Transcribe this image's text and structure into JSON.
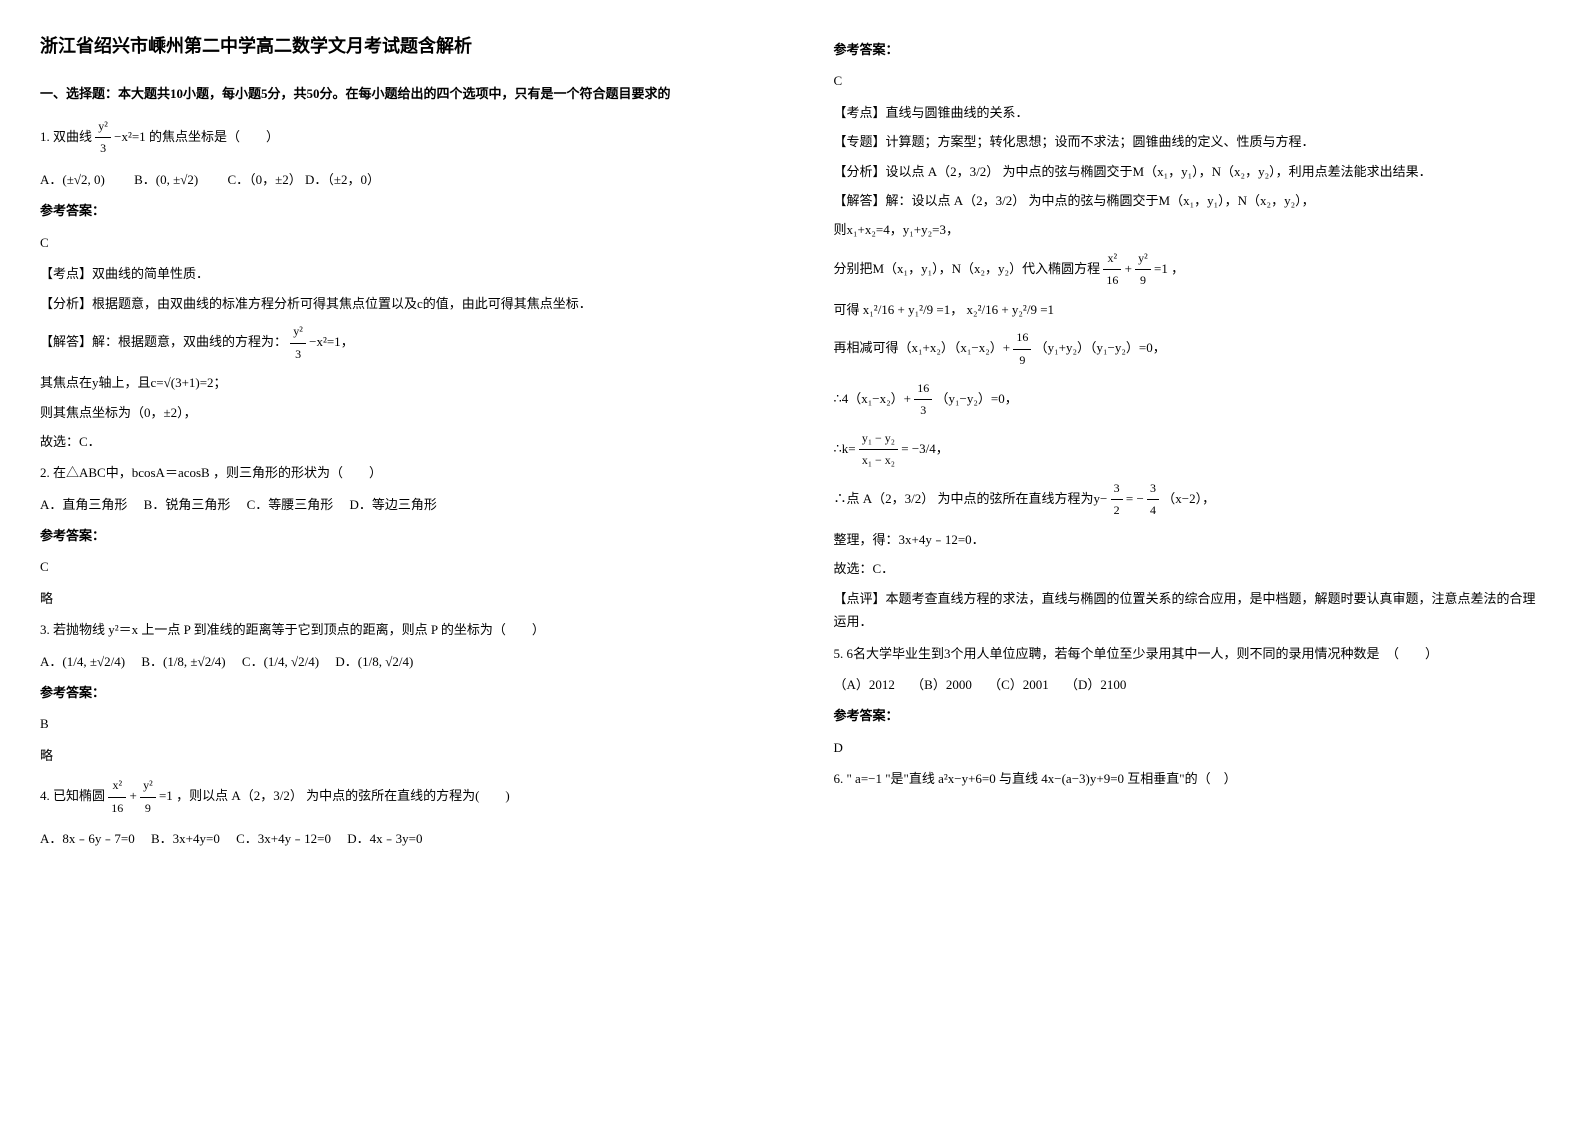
{
  "title": "浙江省绍兴市嵊州第二中学高二数学文月考试题含解析",
  "section1_heading": "一、选择题：本大题共10小题，每小题5分，共50分。在每小题给出的四个选项中，只有是一个符合题目要求的",
  "q1": {
    "stem_prefix": "1. 双曲线",
    "frac_num": "y²",
    "frac_den": "3",
    "frac_suffix": "−x²=1",
    "stem_suffix": "的焦点坐标是（　　）",
    "opt_a": "A．(±√2, 0)",
    "opt_b": "B．(0, ±√2)",
    "opt_c": "C．（0，±2）",
    "opt_d": "D．（±2，0）",
    "answer_label": "参考答案：",
    "answer": "C",
    "point": "【考点】双曲线的简单性质．",
    "analysis": "【分析】根据题意，由双曲线的标准方程分析可得其焦点位置以及c的值，由此可得其焦点坐标．",
    "solve_prefix": "【解答】解：根据题意，双曲线的方程为：",
    "solve_frac_num": "y²",
    "solve_frac_den": "3",
    "solve_frac_suffix": "−x²=1",
    "solve_line2": "其焦点在y轴上，且c=√(3+1)=2；",
    "solve_line3": "则其焦点坐标为（0，±2），",
    "solve_line4": "故选：C．"
  },
  "q2": {
    "stem": "2. 在△ABC中，bcosA＝acosB ，则三角形的形状为（　　）",
    "opt_a": "A．直角三角形",
    "opt_b": "B．锐角三角形",
    "opt_c": "C．等腰三角形",
    "opt_d": "D．等边三角形",
    "answer_label": "参考答案：",
    "answer": "C",
    "note": "略"
  },
  "q3": {
    "stem": "3. 若抛物线 y²＝x 上一点 P 到准线的距离等于它到顶点的距离，则点 P 的坐标为（　　）",
    "opt_a": "A．(1/4, ±√2/4)",
    "opt_b": "B．(1/8, ±√2/4)",
    "opt_c": "C．(1/4, √2/4)",
    "opt_d": "D．(1/8, √2/4)",
    "answer_label": "参考答案：",
    "answer": "B",
    "note": "略"
  },
  "q4": {
    "stem_prefix": "4. 已知椭圆",
    "frac1_num": "x²",
    "frac1_den": "16",
    "plus": "+",
    "frac2_num": "y²",
    "frac2_den": "9",
    "eq": "=1",
    "stem_mid": "，则以点",
    "point_a": "A（2，3/2）",
    "stem_suffix": "为中点的弦所在直线的方程为(　　)",
    "opt_a": "A．8x﹣6y﹣7=0",
    "opt_b": "B．3x+4y=0",
    "opt_c": "C．3x+4y﹣12=0",
    "opt_d": "D．4x﹣3y=0"
  },
  "right": {
    "answer_label": "参考答案：",
    "answer": "C",
    "point": "【考点】直线与圆锥曲线的关系．",
    "topic": "【专题】计算题；方案型；转化思想；设而不求法；圆锥曲线的定义、性质与方程．",
    "analysis_prefix": "【分析】设以点",
    "analysis_point": "A（2，3/2）",
    "analysis_suffix": "为中点的弦与椭圆交于M（x₁，y₁），N（x₂，y₂），利用点差法能求出结果．",
    "solve_prefix": "【解答】解：设以点",
    "solve_point": "A（2，3/2）",
    "solve_suffix": "为中点的弦与椭圆交于M（x₁，y₁），N（x₂，y₂），",
    "solve_line2": "则x₁+x₂=4，y₁+y₂=3，",
    "solve_line3_prefix": "分别把M（x₁，y₁），N（x₂，y₂）代入椭圆方程",
    "solve_frac1_num": "x²",
    "solve_frac1_den": "16",
    "solve_plus": "+",
    "solve_frac2_num": "y²",
    "solve_frac2_den": "9",
    "solve_eq": "=1",
    "solve_line3_suffix": "，",
    "solve_line4_prefix": "可得",
    "solve_eq1": "x₁²/16 + y₁²/9 =1",
    "solve_eq2": "x₂²/16 + y₂²/9 =1",
    "solve_line5_prefix": "再相减可得（x₁+x₂）（x₁−x₂）+ ",
    "solve_frac3_num": "16",
    "solve_frac3_den": "9",
    "solve_line5_suffix": "（y₁+y₂）（y₁−y₂）=0，",
    "solve_line6_prefix": "∴4（x₁−x₂）+ ",
    "solve_frac4_num": "16",
    "solve_frac4_den": "3",
    "solve_line6_suffix": "（y₁−y₂）=0，",
    "solve_line7_prefix": "∴k=",
    "solve_k_num": "y₁ − y₂",
    "solve_k_den": "x₁ − x₂",
    "solve_k_eq": "= −3/4",
    "solve_line8_prefix": "∴点",
    "solve_line8_point": "A（2，3/2）",
    "solve_line8_mid": "为中点的弦所在直线方程为y−",
    "solve_frac5_num": "3",
    "solve_frac5_den": "2",
    "solve_line8_mid2": "= −",
    "solve_frac6_num": "3",
    "solve_frac6_den": "4",
    "solve_line8_suffix": "（x−2），",
    "solve_line9": "整理，得：3x+4y﹣12=0．",
    "solve_line10": "故选：C．",
    "comment": "【点评】本题考查直线方程的求法，直线与椭圆的位置关系的综合应用，是中档题，解题时要认真审题，注意点差法的合理运用．"
  },
  "q5": {
    "stem": "5. 6名大学毕业生到3个用人单位应聘，若每个单位至少录用其中一人，则不同的录用情况种数是　（　　）",
    "opt_a": "（A）2012",
    "opt_b": "（B）2000",
    "opt_c": "（C）2001",
    "opt_d": "（D）2100",
    "answer_label": "参考答案：",
    "answer": "D"
  },
  "q6": {
    "stem": "6. \" a=−1 \"是\"直线 a²x−y+6=0 与直线 4x−(a−3)y+9=0 互相垂直\"的（　）"
  }
}
